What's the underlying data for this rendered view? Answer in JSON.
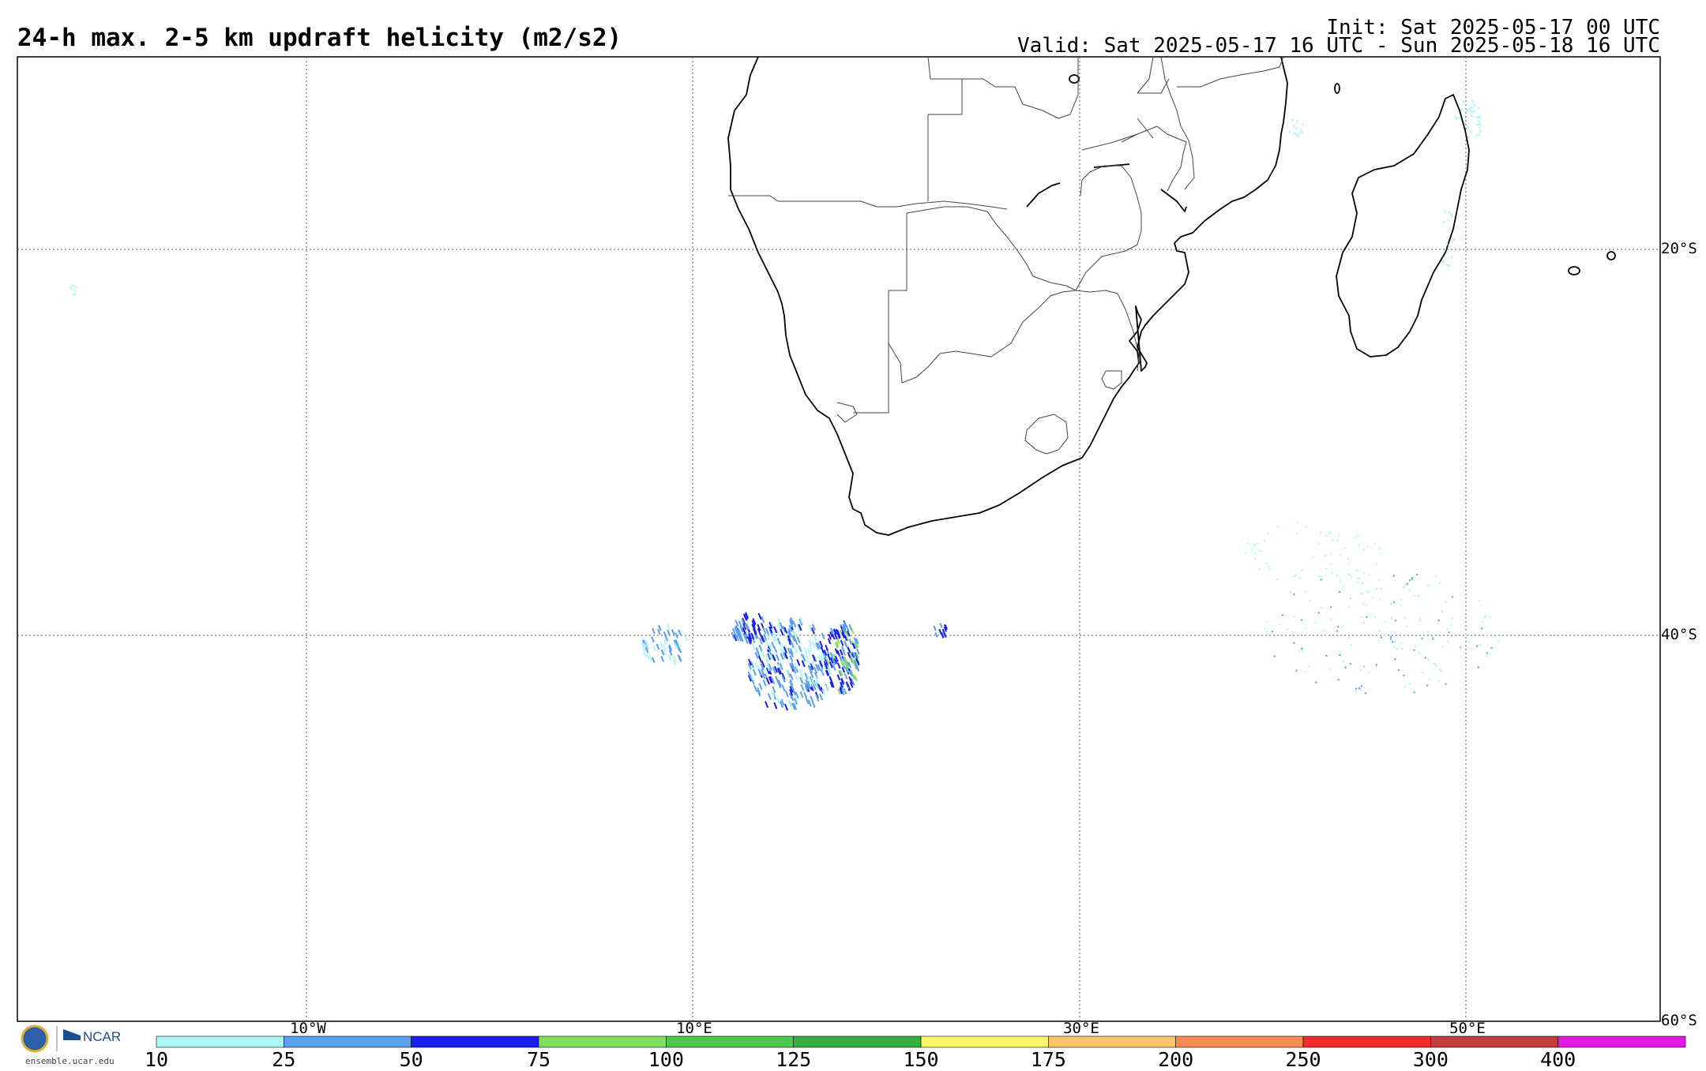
{
  "header": {
    "title": "24-h max. 2-5 km updraft helicity (m2/s2)",
    "init": "Init: Sat 2025-05-17 00 UTC",
    "valid": "Valid: Sat 2025-05-17 16 UTC - Sun 2025-05-18 16 UTC"
  },
  "grid": {
    "lat_labels": [
      "20°S",
      "40°S",
      "60°S"
    ],
    "lon_labels": [
      "10°W",
      "10°E",
      "30°E",
      "50°E"
    ]
  },
  "colorbar": {
    "thresholds": [
      "10",
      "25",
      "50",
      "75",
      "100",
      "125",
      "150",
      "175",
      "200",
      "250",
      "300",
      "400"
    ],
    "colors": [
      "#aef7f7",
      "#5aa0f0",
      "#1c1cf0",
      "#7fe05f",
      "#4fc84f",
      "#36b03f",
      "#f8f86b",
      "#fbc66b",
      "#f98a50",
      "#f02b2b",
      "#c43c3c",
      "#e619e6"
    ]
  },
  "logo": {
    "org_left": "NSF",
    "org_right": "NCAR",
    "url": "ensemble.ucar.edu"
  },
  "map": {
    "field": "updraft helicity",
    "region": "Southern Africa and South Atlantic / Southwest Indian Ocean"
  }
}
